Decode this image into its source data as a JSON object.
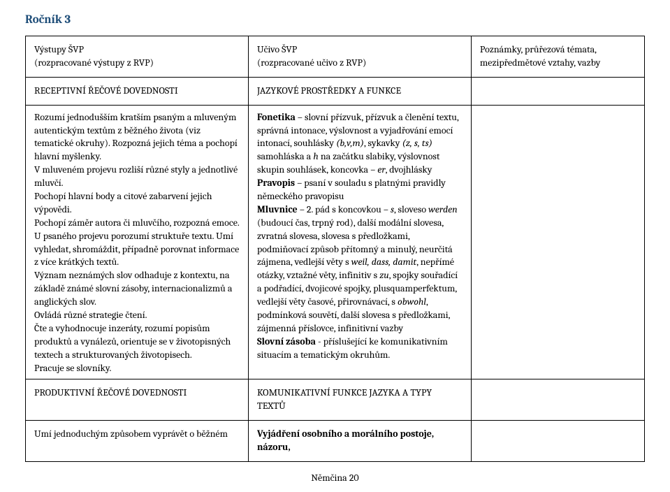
{
  "page_title": "Ročník 3",
  "title_color": "#1f4e79",
  "table": {
    "border_color": "#000000",
    "column_widths_pct": [
      36,
      36,
      28
    ],
    "header": {
      "col1_line1": "Výstupy ŠVP",
      "col1_line2": "(rozpracované výstupy z RVP)",
      "col2_line1": "Učivo ŠVP",
      "col2_line2": "(rozpracované učivo z RVP)",
      "col3_line1": "Poznámky, průřezová témata,",
      "col3_line2": "mezipředmětové vztahy, vazby"
    },
    "row1": {
      "col1": "RECEPTIVNÍ ŘEČOVÉ DOVEDNOSTI",
      "col2": "JAZYKOVÉ PROSTŘEDKY A FUNKCE",
      "col3": ""
    },
    "row2": {
      "col1_text_a": "Rozumí jednodušším kratším psaným a mluveným autentickým textům z běžného života (viz tematické okruhy). Rozpozná jejich téma a pochopí hlavní myšlenky.",
      "col1_text_b": "V mluveném projevu rozliší různé styly a jednotlivé mluvčí.",
      "col1_text_c": "Pochopí hlavní body a citové zabarvení jejich výpovědi.",
      "col1_text_d": "Pochopí záměr autora či mluvčího, rozpozná emoce.",
      "col1_text_e": "U psaného projevu porozumí struktuře textu. Umí vyhledat, shromáždit, případně porovnat informace z více krátkých textů.",
      "col1_text_f": "Význam neznámých slov odhaduje z kontextu, na základě známé slovní zásoby, internacionalizmů a anglických slov.",
      "col1_text_g": "Ovládá různé strategie čtení.",
      "col1_text_h": "Čte a vyhodnocuje inzeráty, rozumí popisům produktů a vynálezů, orientuje se v životopisných textech a strukturovaných životopisech.",
      "col1_text_i": "Pracuje se slovníky.",
      "col2_fonetika_label": "Fonetika",
      "col2_fonetika_body": " – slovní přízvuk, přízvuk a členění textu, správná intonace, výslovnost a vyjadřování emocí intonací, souhlásky ",
      "col2_fonetika_paren1": "(b,v,m)",
      "col2_fonetika_mid": ", sykavky ",
      "col2_fonetika_paren2": "(z, s, ts)",
      "col2_fonetika_tail": " samohláska a ",
      "col2_fonetika_italic_h": "h",
      "col2_fonetika_tail2": " na začátku slabiky, výslovnost skupin souhlásek, koncovka – ",
      "col2_fonetika_italic_er": "er",
      "col2_fonetika_tail3": ", dvojhlásky",
      "col2_pravopis_label": "Pravopis",
      "col2_pravopis_body": " – psaní v souladu s platnými pravidly německého pravopisu",
      "col2_mluvnice_label": "Mluvnice",
      "col2_mluvnice_body1": " – 2. pád s koncovkou – ",
      "col2_mluvnice_italic_s": "s",
      "col2_mluvnice_body2": ", sloveso ",
      "col2_mluvnice_italic_werden": "werden",
      "col2_mluvnice_body3": " (budoucí čas, trpný rod), další modální slovesa, zvratná slovesa, slovesa s předložkami, podmiňovací způsob přítomný a minulý, neurčitá zájmena, vedlejší věty s ",
      "col2_mluvnice_italic_weil": "weil, dass, damit",
      "col2_mluvnice_body4": ", nepřímé otázky, vztažné věty, infinitiv s ",
      "col2_mluvnice_italic_zu": "zu",
      "col2_mluvnice_body5": ", spojky souřadící a podřadící, dvojicové spojky, plusquamperfektum, vedlejší věty časové, přirovnávací, s ",
      "col2_mluvnice_italic_obwohl": "obwohl",
      "col2_mluvnice_body6": ", podmínková souvětí, další slovesa s předložkami, zájmenná příslovce, infinitivní vazby",
      "col2_sz_label": "Slovní zásoba",
      "col2_sz_body": " - příslušející ke komunikativním situacím a tematickým okruhům.",
      "col3": ""
    },
    "row3": {
      "col1": "PRODUKTIVNÍ ŘEČOVÉ DOVEDNOSTI",
      "col2": "KOMUNIKATIVNÍ FUNKCE JAZYKA A TYPY TEXTŮ",
      "col3": ""
    },
    "row4": {
      "col1": "Umí jednoduchým způsobem vyprávět o běžném",
      "col2": "Vyjádření osobního a morálního postoje, názoru,",
      "col3": ""
    }
  },
  "footer": "Němčina 20"
}
